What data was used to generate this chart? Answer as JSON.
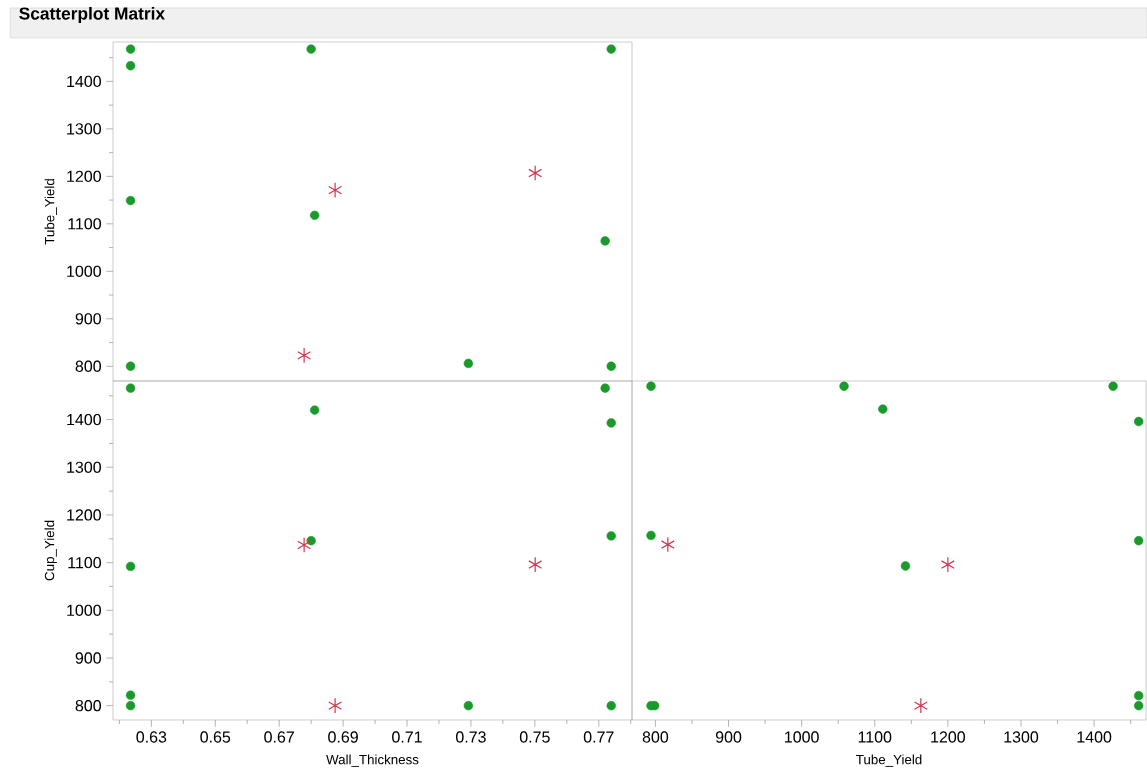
{
  "chart_data": [
    {
      "type": "scatter",
      "title": "Scatterplot Matrix",
      "ylabel": "Tube_Yield",
      "tick_labels": "y",
      "xlim": [
        0.618,
        0.7804
      ],
      "ylim": [
        769,
        1483
      ],
      "yticks": [
        800,
        {
          "value": 850,
          "label": null
        },
        900,
        {
          "value": 950,
          "label": null
        },
        1000,
        {
          "value": 1050,
          "label": null
        },
        1100,
        {
          "value": 1150,
          "label": null
        },
        1200,
        {
          "value": 1250,
          "label": null
        },
        1300,
        {
          "value": 1350,
          "label": null
        },
        1400,
        {
          "value": 1450,
          "label": null
        }
      ],
      "series": [
        {
          "color": "#1a9a2a",
          "marker": "circle",
          "x": [
            0.6235,
            0.6235,
            0.6235,
            0.6235,
            0.68,
            0.6811,
            0.7292,
            0.772,
            0.7739,
            0.7739
          ],
          "values": [
            1468,
            1433,
            1149,
            800,
            1468,
            1118,
            806,
            1064,
            1468,
            800
          ]
        },
        {
          "color": "#d2364f",
          "marker": "cross",
          "x": [
            0.6875,
            0.7501,
            0.6778
          ],
          "values": [
            1171,
            1207,
            823
          ]
        }
      ]
    },
    {
      "type": "scatter",
      "xlabel": "Wall_Thickness",
      "ylabel": "Cup_Yield",
      "xlim": [
        0.618,
        0.7804
      ],
      "ylim": [
        770,
        1481
      ],
      "xticks": [
        {
          "value": 0.62,
          "label": null
        },
        0.63,
        {
          "value": 0.64,
          "label": null
        },
        0.65,
        {
          "value": 0.66,
          "label": null
        },
        0.67,
        {
          "value": 0.68,
          "label": null
        },
        0.69,
        {
          "value": 0.7,
          "label": null
        },
        0.71,
        {
          "value": 0.72,
          "label": null
        },
        0.73,
        {
          "value": 0.74,
          "label": null
        },
        0.75,
        {
          "value": 0.76,
          "label": null
        },
        0.77,
        {
          "value": 0.78,
          "label": null
        }
      ],
      "yticks": [
        800,
        {
          "value": 850,
          "label": null
        },
        900,
        {
          "value": 950,
          "label": null
        },
        1000,
        {
          "value": 1050,
          "label": null
        },
        1100,
        {
          "value": 1150,
          "label": null
        },
        1200,
        {
          "value": 1250,
          "label": null
        },
        1300,
        {
          "value": 1350,
          "label": null
        },
        1400,
        {
          "value": 1450,
          "label": null
        }
      ],
      "series": [
        {
          "color": "#1a9a2a",
          "marker": "circle",
          "x": [
            0.6235,
            0.6235,
            0.6235,
            0.6235,
            0.6811,
            0.68,
            0.7292,
            0.772,
            0.7739,
            0.7739,
            0.7739
          ],
          "values": [
            1466,
            1092,
            822,
            800,
            1420,
            1146,
            800,
            1466,
            1393,
            1156,
            800
          ]
        },
        {
          "color": "#d2364f",
          "marker": "cross",
          "x": [
            0.6778,
            0.6875,
            0.7501
          ],
          "values": [
            1137,
            800,
            1096
          ]
        }
      ]
    },
    {
      "type": "scatter",
      "xlabel": "Tube_Yield",
      "tick_labels": "x",
      "xlim": [
        768,
        1471
      ],
      "ylim": [
        770,
        1481
      ],
      "xticks": [
        800,
        {
          "value": 850,
          "label": null
        },
        900,
        {
          "value": 950,
          "label": null
        },
        1000,
        {
          "value": 1050,
          "label": null
        },
        1100,
        {
          "value": 1150,
          "label": null
        },
        1200,
        {
          "value": 1250,
          "label": null
        },
        1300,
        {
          "value": 1350,
          "label": null
        },
        1400,
        {
          "value": 1450,
          "label": null
        }
      ],
      "series": [
        {
          "color": "#1a9a2a",
          "marker": "circle",
          "x": [
            794,
            794,
            794,
            799,
            1058,
            1111,
            1142,
            1426,
            1461,
            1461,
            1461,
            1461
          ],
          "values": [
            1470,
            1157,
            800,
            800,
            1470,
            1422,
            1093,
            1470,
            1396,
            1146,
            821,
            800
          ]
        },
        {
          "color": "#d2364f",
          "marker": "cross",
          "x": [
            817,
            1200,
            1163
          ],
          "values": [
            1138,
            1096,
            800
          ]
        }
      ]
    }
  ]
}
